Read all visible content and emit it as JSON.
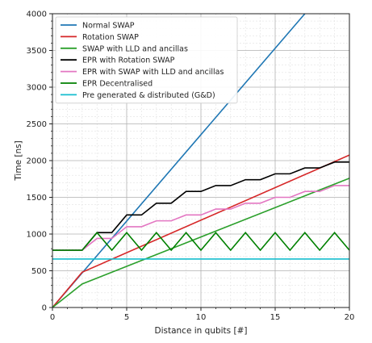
{
  "chart_data": {
    "type": "line",
    "title": "",
    "xlabel": "Distance in qubits [#]",
    "ylabel": "Time [ns]",
    "xlim": [
      0,
      20
    ],
    "ylim": [
      0,
      4000
    ],
    "xticks": [
      0,
      5,
      10,
      15,
      20
    ],
    "yticks": [
      0,
      500,
      1000,
      1500,
      2000,
      2500,
      3000,
      3500,
      4000
    ],
    "grid": true,
    "legend_position": "top-left",
    "series": [
      {
        "name": "Normal SWAP",
        "color": "#1f77b4",
        "x": [
          0,
          17
        ],
        "y": [
          0,
          4000
        ]
      },
      {
        "name": "Rotation SWAP",
        "color": "#d62728",
        "x": [
          0,
          2,
          20
        ],
        "y": [
          0,
          480,
          2075
        ]
      },
      {
        "name": "SWAP with LLD and ancillas",
        "color": "#2ca02c",
        "x": [
          0,
          2,
          20
        ],
        "y": [
          0,
          320,
          1760
        ]
      },
      {
        "name": "EPR with Rotation SWAP",
        "color": "#000000",
        "x": [
          0,
          2,
          2,
          3,
          4,
          5,
          6,
          7,
          8,
          9,
          10,
          11,
          12,
          13,
          14,
          15,
          16,
          17,
          18,
          19,
          20
        ],
        "y": [
          780,
          780,
          780,
          1020,
          1020,
          1260,
          1260,
          1420,
          1420,
          1580,
          1580,
          1660,
          1660,
          1740,
          1740,
          1820,
          1820,
          1900,
          1900,
          1980,
          1980
        ],
        "step": true
      },
      {
        "name": "EPR with SWAP with LLD and ancillas",
        "color": "#e377c2",
        "x": [
          0,
          2,
          3,
          4,
          5,
          6,
          7,
          8,
          9,
          10,
          11,
          12,
          13,
          14,
          15,
          16,
          17,
          18,
          19,
          20
        ],
        "y": [
          780,
          780,
          940,
          940,
          1100,
          1100,
          1180,
          1180,
          1260,
          1260,
          1340,
          1340,
          1420,
          1420,
          1500,
          1500,
          1580,
          1580,
          1660,
          1660
        ],
        "step": true
      },
      {
        "name": "EPR Decentralised",
        "color": "#008000",
        "x": [
          0,
          2,
          3,
          4,
          5,
          6,
          7,
          8,
          9,
          10,
          11,
          12,
          13,
          14,
          15,
          16,
          17,
          18,
          19,
          20
        ],
        "y": [
          780,
          780,
          1020,
          780,
          1020,
          780,
          1020,
          780,
          1020,
          780,
          1020,
          780,
          1020,
          780,
          1020,
          780,
          1020,
          780,
          1020,
          780
        ]
      },
      {
        "name": "Pre generated & distributed (G&D)",
        "color": "#17becf",
        "x": [
          0,
          20
        ],
        "y": [
          660,
          660
        ]
      }
    ]
  }
}
